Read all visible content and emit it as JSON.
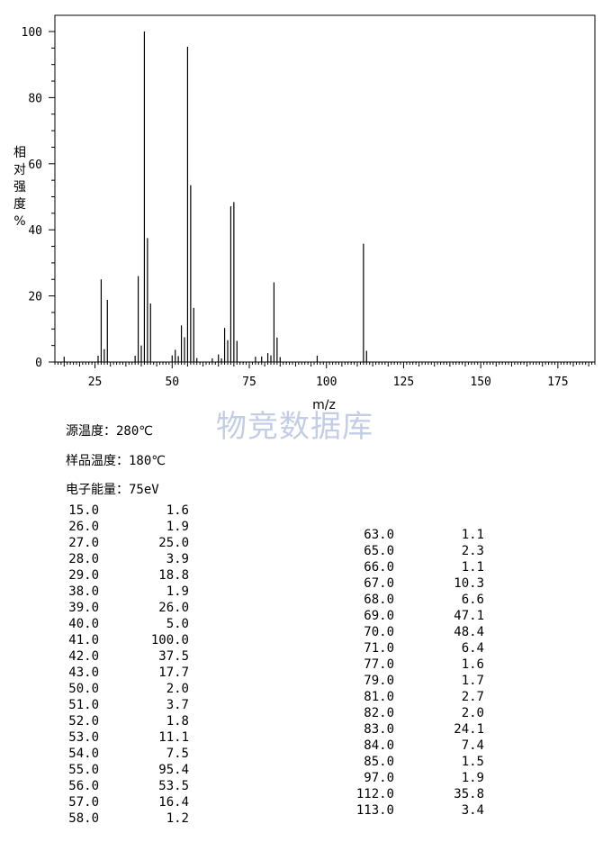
{
  "chart_data": {
    "type": "bar",
    "xlabel": "m/z",
    "ylabel": "相对强度%",
    "xlim": [
      12,
      187
    ],
    "ylim": [
      0,
      100
    ],
    "x_ticks": [
      "25",
      "50",
      "75",
      "100",
      "125",
      "150",
      "175"
    ],
    "y_ticks": [
      "0",
      "20",
      "40",
      "60",
      "80",
      "100"
    ],
    "grid": false,
    "series": [
      {
        "x": [
          15,
          26,
          27,
          28,
          29,
          38,
          39,
          40,
          41,
          42,
          43,
          50,
          51,
          52,
          53,
          54,
          55,
          56,
          57,
          58,
          63,
          65,
          66,
          67,
          68,
          69,
          70,
          71,
          77,
          79,
          81,
          82,
          83,
          84,
          85,
          97,
          112,
          113
        ],
        "values": [
          1.6,
          1.9,
          25.0,
          3.9,
          18.8,
          1.9,
          26.0,
          5.0,
          100.0,
          37.5,
          17.7,
          2.0,
          3.7,
          1.8,
          11.1,
          7.5,
          95.4,
          53.5,
          16.4,
          1.2,
          1.1,
          2.3,
          1.1,
          10.3,
          6.6,
          47.1,
          48.4,
          6.4,
          1.6,
          1.7,
          2.7,
          2.0,
          24.1,
          7.4,
          1.5,
          1.9,
          35.8,
          3.4
        ]
      }
    ]
  },
  "watermark": "物竞数据库",
  "conditions": {
    "source_temp": "源温度：280℃",
    "sample_temp": "样品温度：180℃",
    "electron_energy": "电子能量：75eV"
  },
  "peak_table_left": [
    [
      "15.0",
      "1.6"
    ],
    [
      "26.0",
      "1.9"
    ],
    [
      "27.0",
      "25.0"
    ],
    [
      "28.0",
      "3.9"
    ],
    [
      "29.0",
      "18.8"
    ],
    [
      "38.0",
      "1.9"
    ],
    [
      "39.0",
      "26.0"
    ],
    [
      "40.0",
      "5.0"
    ],
    [
      "41.0",
      "100.0"
    ],
    [
      "42.0",
      "37.5"
    ],
    [
      "43.0",
      "17.7"
    ],
    [
      "50.0",
      "2.0"
    ],
    [
      "51.0",
      "3.7"
    ],
    [
      "52.0",
      "1.8"
    ],
    [
      "53.0",
      "11.1"
    ],
    [
      "54.0",
      "7.5"
    ],
    [
      "55.0",
      "95.4"
    ],
    [
      "56.0",
      "53.5"
    ],
    [
      "57.0",
      "16.4"
    ],
    [
      "58.0",
      "1.2"
    ]
  ],
  "peak_table_right": [
    [
      "63.0",
      "1.1"
    ],
    [
      "65.0",
      "2.3"
    ],
    [
      "66.0",
      "1.1"
    ],
    [
      "67.0",
      "10.3"
    ],
    [
      "68.0",
      "6.6"
    ],
    [
      "69.0",
      "47.1"
    ],
    [
      "70.0",
      "48.4"
    ],
    [
      "71.0",
      "6.4"
    ],
    [
      "77.0",
      "1.6"
    ],
    [
      "79.0",
      "1.7"
    ],
    [
      "81.0",
      "2.7"
    ],
    [
      "82.0",
      "2.0"
    ],
    [
      "83.0",
      "24.1"
    ],
    [
      "84.0",
      "7.4"
    ],
    [
      "85.0",
      "1.5"
    ],
    [
      "97.0",
      "1.9"
    ],
    [
      "112.0",
      "35.8"
    ],
    [
      "113.0",
      "3.4"
    ]
  ]
}
